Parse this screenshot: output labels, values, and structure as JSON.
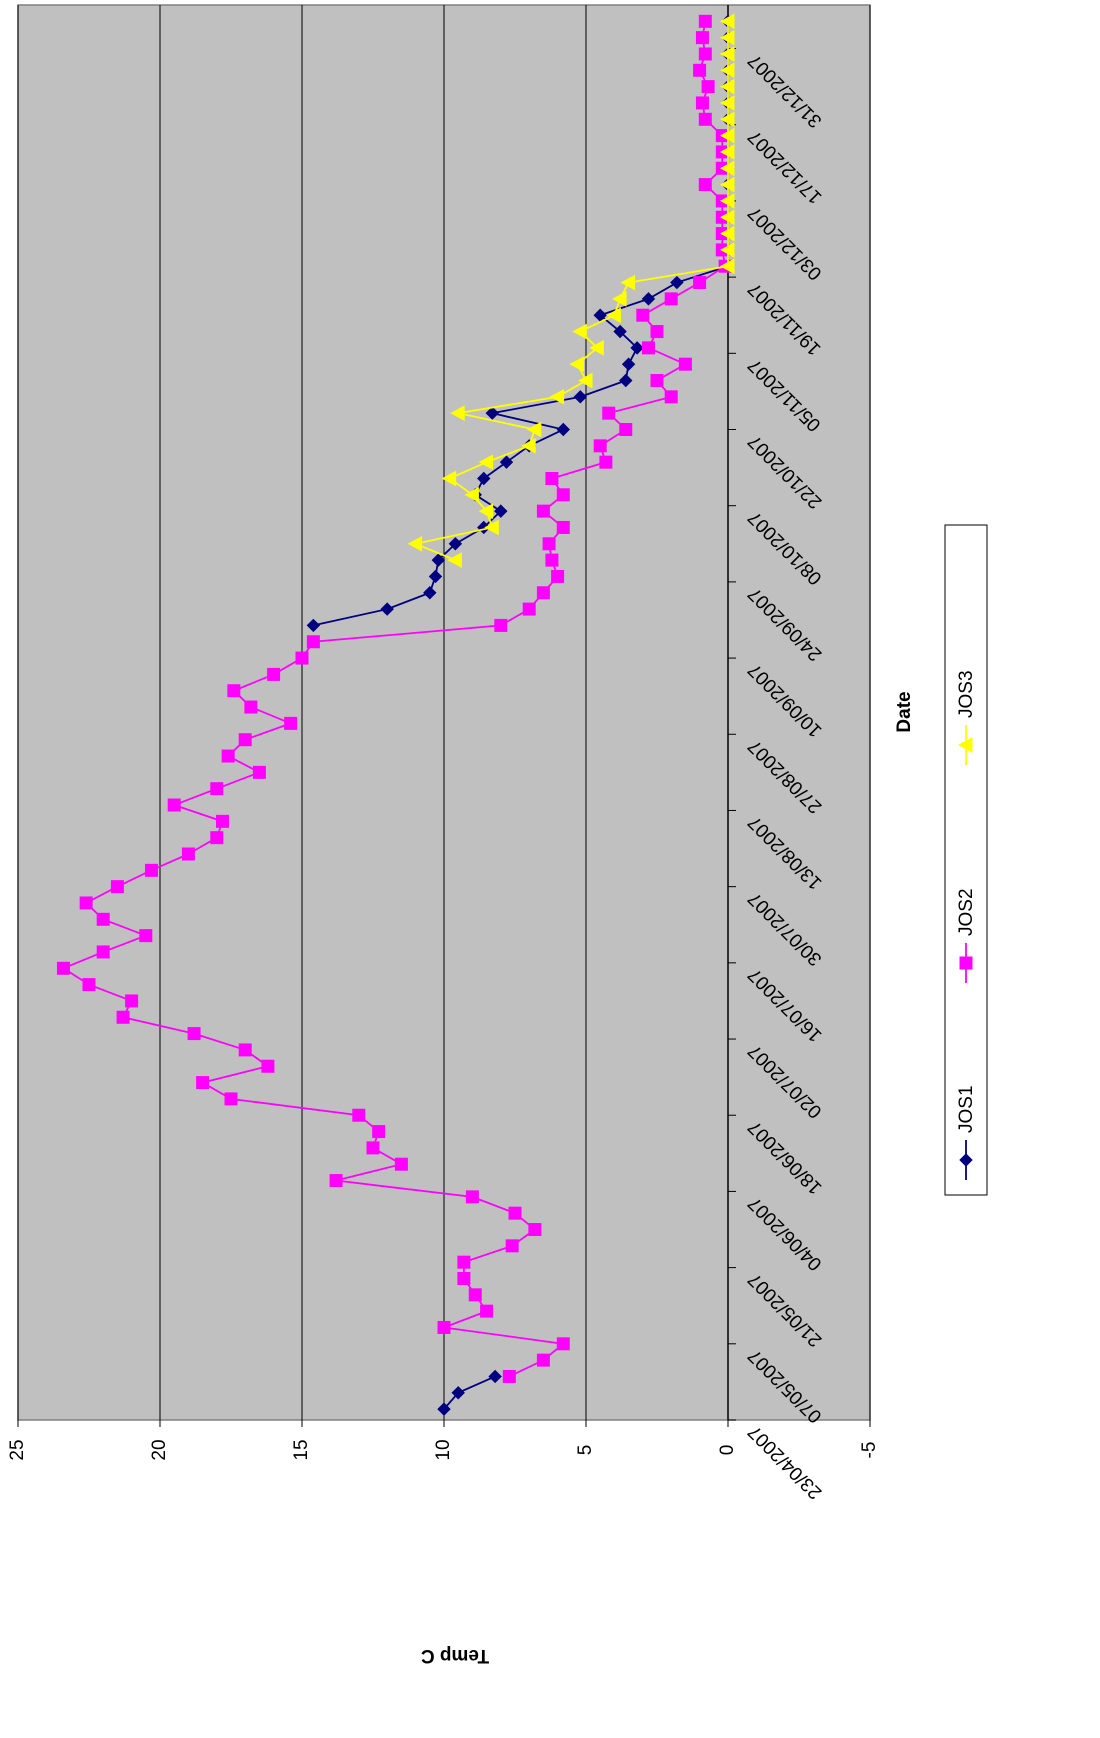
{
  "chart_data": {
    "type": "line",
    "x_label": "Date",
    "y_label": "Temp C",
    "x": [
      "25/04/2007",
      "28/04/2007",
      "01/05/2007",
      "04/05/2007",
      "07/05/2007",
      "10/05/2007",
      "13/05/2007",
      "16/05/2007",
      "19/05/2007",
      "22/05/2007",
      "25/05/2007",
      "28/05/2007",
      "31/05/2007",
      "03/06/2007",
      "06/06/2007",
      "09/06/2007",
      "12/06/2007",
      "15/06/2007",
      "18/06/2007",
      "21/06/2007",
      "24/06/2007",
      "27/06/2007",
      "30/06/2007",
      "03/07/2007",
      "06/07/2007",
      "09/07/2007",
      "12/07/2007",
      "15/07/2007",
      "18/07/2007",
      "21/07/2007",
      "24/07/2007",
      "27/07/2007",
      "30/07/2007",
      "02/08/2007",
      "05/08/2007",
      "08/08/2007",
      "11/08/2007",
      "14/08/2007",
      "17/08/2007",
      "20/08/2007",
      "23/08/2007",
      "26/08/2007",
      "29/08/2007",
      "01/09/2007",
      "04/09/2007",
      "07/09/2007",
      "10/09/2007",
      "13/09/2007",
      "16/09/2007",
      "19/09/2007",
      "22/09/2007",
      "25/09/2007",
      "28/09/2007",
      "01/10/2007",
      "04/10/2007",
      "07/10/2007",
      "10/10/2007",
      "13/10/2007",
      "16/10/2007",
      "19/10/2007",
      "22/10/2007",
      "25/10/2007",
      "28/10/2007",
      "31/10/2007",
      "03/11/2007",
      "06/11/2007",
      "09/11/2007",
      "12/11/2007",
      "15/11/2007",
      "18/11/2007",
      "21/11/2007",
      "24/11/2007",
      "27/11/2007",
      "30/11/2007",
      "03/12/2007",
      "06/12/2007",
      "09/12/2007",
      "12/12/2007",
      "15/12/2007",
      "18/12/2007",
      "21/12/2007",
      "24/12/2007",
      "27/12/2007",
      "30/12/2007",
      "02/01/2008",
      "05/01/2008"
    ],
    "series": [
      {
        "name": "JOS1",
        "color": "#000080",
        "marker": "diamond",
        "values": [
          10.0,
          9.5,
          8.2,
          null,
          null,
          null,
          null,
          null,
          null,
          null,
          null,
          null,
          null,
          null,
          null,
          null,
          null,
          null,
          null,
          null,
          null,
          null,
          null,
          null,
          null,
          null,
          null,
          null,
          null,
          null,
          null,
          null,
          null,
          null,
          null,
          null,
          null,
          null,
          null,
          null,
          null,
          null,
          null,
          null,
          null,
          null,
          null,
          null,
          14.6,
          12.0,
          10.5,
          10.3,
          10.2,
          9.6,
          8.6,
          8.0,
          8.9,
          8.6,
          7.8,
          7.0,
          5.8,
          8.3,
          5.2,
          3.6,
          3.5,
          3.2,
          3.8,
          4.5,
          2.8,
          1.8,
          0,
          0,
          0,
          0,
          0,
          0,
          0,
          0,
          0,
          0,
          0,
          0,
          0,
          0,
          0,
          0
        ]
      },
      {
        "name": "JOS2",
        "color": "#ff00ff",
        "marker": "square",
        "values": [
          null,
          null,
          7.7,
          6.5,
          5.8,
          10.0,
          8.5,
          8.9,
          9.3,
          9.3,
          7.6,
          6.8,
          7.5,
          9.0,
          13.8,
          11.5,
          12.5,
          12.3,
          13.0,
          17.5,
          18.5,
          16.2,
          17.0,
          18.8,
          21.3,
          21.0,
          22.5,
          23.4,
          22.0,
          20.5,
          22.0,
          22.6,
          21.5,
          20.3,
          19.0,
          18.0,
          17.8,
          19.5,
          18.0,
          16.5,
          17.6,
          17.0,
          15.4,
          16.8,
          17.4,
          16.0,
          15.0,
          14.6,
          8.0,
          7.0,
          6.5,
          6.0,
          6.2,
          6.3,
          5.8,
          6.5,
          5.8,
          6.2,
          4.3,
          4.5,
          3.6,
          4.2,
          2.0,
          2.5,
          1.5,
          2.8,
          2.5,
          3.0,
          2.0,
          1.0,
          0.1,
          0.2,
          0.2,
          0.2,
          0.2,
          0.8,
          0.2,
          0.2,
          0.2,
          0.8,
          0.9,
          0.7,
          1.0,
          0.8,
          0.9,
          0.8
        ]
      },
      {
        "name": "JOS3",
        "color": "#ffff00",
        "marker": "triangle",
        "values": [
          null,
          null,
          null,
          null,
          null,
          null,
          null,
          null,
          null,
          null,
          null,
          null,
          null,
          null,
          null,
          null,
          null,
          null,
          null,
          null,
          null,
          null,
          null,
          null,
          null,
          null,
          null,
          null,
          null,
          null,
          null,
          null,
          null,
          null,
          null,
          null,
          null,
          null,
          null,
          null,
          null,
          null,
          null,
          null,
          null,
          null,
          null,
          null,
          null,
          null,
          null,
          null,
          9.6,
          11.0,
          8.3,
          8.5,
          9.0,
          9.8,
          8.5,
          7.0,
          6.8,
          9.5,
          6.0,
          5.0,
          5.3,
          4.6,
          5.2,
          4.0,
          3.8,
          3.5,
          0,
          0,
          0,
          0,
          0,
          0,
          0,
          0,
          0,
          0,
          0,
          0,
          0,
          0,
          0,
          0
        ]
      }
    ],
    "xlim": [
      "23/04/2007",
      "08/01/2008"
    ],
    "xticks": [
      "23/04/2007",
      "07/05/2007",
      "21/05/2007",
      "04/06/2007",
      "18/06/2007",
      "02/07/2007",
      "16/07/2007",
      "30/07/2007",
      "13/08/2007",
      "27/08/2007",
      "10/09/2007",
      "24/09/2007",
      "08/10/2007",
      "22/10/2007",
      "05/11/2007",
      "19/11/2007",
      "03/12/2007",
      "17/12/2007",
      "31/12/2007"
    ],
    "ylim": [
      -5,
      25
    ],
    "yticks": [
      -5,
      0,
      5,
      10,
      15,
      20,
      25
    ],
    "grid": true,
    "legend": "right"
  }
}
